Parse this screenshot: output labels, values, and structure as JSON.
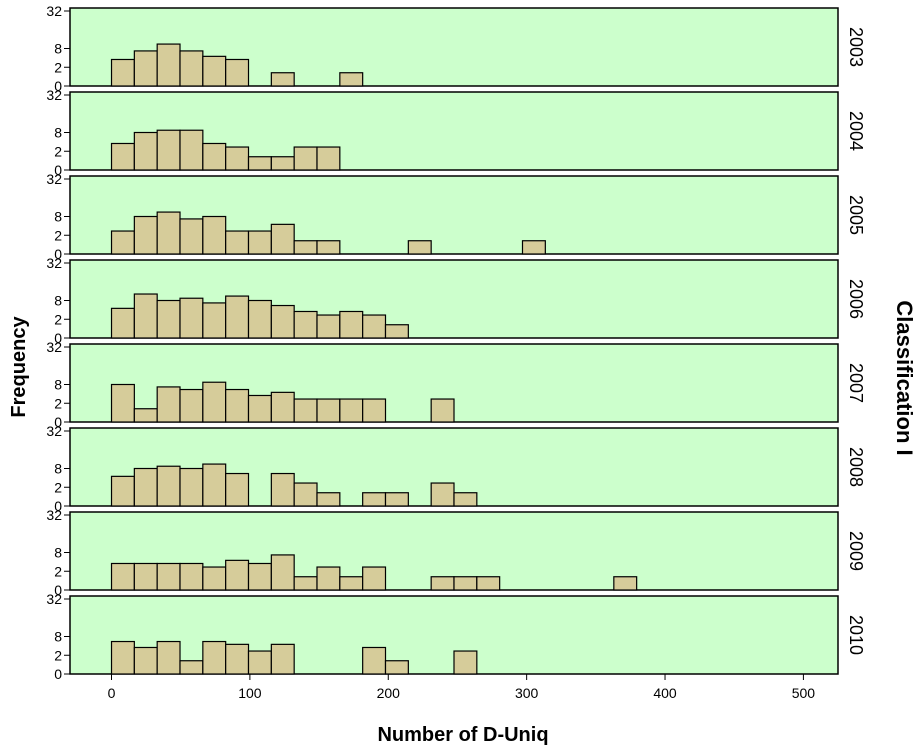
{
  "chart_data": {
    "type": "bar",
    "subtype": "faceted-histogram",
    "xlabel": "Number of D-Uniq",
    "ylabel": "Frequency",
    "facet_label": "Classification I",
    "xlim": [
      -30,
      525
    ],
    "x_ticks": [
      0,
      100,
      200,
      300,
      400,
      500
    ],
    "y_ticks": [
      0,
      2,
      8,
      32
    ],
    "y_scale": "sqrt",
    "ylim": [
      0,
      32
    ],
    "bin_width": 16.5,
    "grid": false,
    "bar_color": "#d6cc9a",
    "panel_color": "#ccffcc",
    "panels": [
      {
        "facet": "2003",
        "bin_starts": [
          0,
          16.5,
          33,
          49.5,
          66,
          82.5,
          115.5,
          165
        ],
        "values": [
          4,
          7,
          10,
          7,
          5,
          4,
          1,
          1
        ]
      },
      {
        "facet": "2004",
        "bin_starts": [
          0,
          16.5,
          33,
          49.5,
          66,
          82.5,
          99,
          115.5,
          132,
          148.5
        ],
        "values": [
          4,
          8,
          9,
          9,
          4,
          3,
          1,
          1,
          3,
          3
        ]
      },
      {
        "facet": "2005",
        "bin_starts": [
          0,
          16.5,
          33,
          49.5,
          66,
          82.5,
          99,
          115.5,
          132,
          148.5,
          214.5,
          297
        ],
        "values": [
          3,
          8,
          10,
          7,
          8,
          3,
          3,
          5,
          1,
          1,
          1,
          1
        ]
      },
      {
        "facet": "2006",
        "bin_starts": [
          0,
          16.5,
          33,
          49.5,
          66,
          82.5,
          99,
          115.5,
          132,
          148.5,
          165,
          181.5,
          198
        ],
        "values": [
          5,
          11,
          8,
          9,
          7,
          10,
          8,
          6,
          4,
          3,
          4,
          3,
          1
        ]
      },
      {
        "facet": "2007",
        "bin_starts": [
          0,
          16.5,
          33,
          49.5,
          66,
          82.5,
          99,
          115.5,
          132,
          148.5,
          165,
          181.5,
          231
        ],
        "values": [
          8,
          1,
          7,
          6,
          9,
          6,
          4,
          5,
          3,
          3,
          3,
          3,
          3
        ]
      },
      {
        "facet": "2008",
        "bin_starts": [
          0,
          16.5,
          33,
          49.5,
          66,
          82.5,
          115.5,
          132,
          148.5,
          181.5,
          198,
          231,
          247.5
        ],
        "values": [
          5,
          8,
          9,
          8,
          10,
          6,
          6,
          3,
          1,
          1,
          1,
          3,
          1
        ]
      },
      {
        "facet": "2009",
        "bin_starts": [
          0,
          16.5,
          33,
          49.5,
          66,
          82.5,
          99,
          115.5,
          132,
          148.5,
          165,
          181.5,
          231,
          247.5,
          264,
          363
        ],
        "values": [
          4,
          4,
          4,
          4,
          3,
          5,
          4,
          7,
          1,
          3,
          1,
          3,
          1,
          1,
          1,
          1
        ]
      },
      {
        "facet": "2010",
        "bin_starts": [
          0,
          16.5,
          33,
          49.5,
          66,
          82.5,
          99,
          115.5,
          181.5,
          198,
          247.5
        ],
        "values": [
          6,
          4,
          6,
          1,
          6,
          5,
          3,
          5,
          4,
          1,
          3
        ]
      }
    ]
  }
}
